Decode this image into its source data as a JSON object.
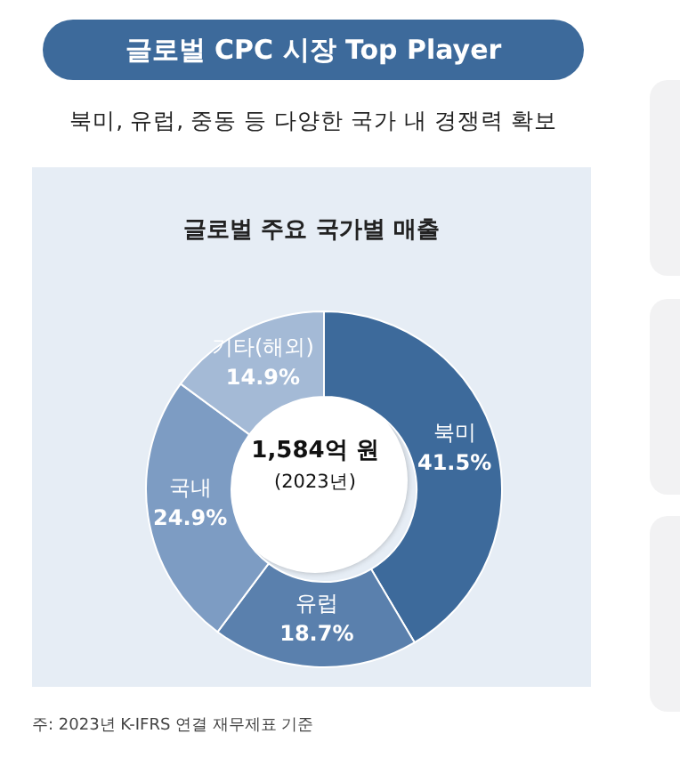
{
  "chart_data": {
    "type": "donut",
    "title": "글로벌 CPC 시장 Top Player",
    "subtitle": "북미, 유럽, 중동 등 다양한 국가 내 경쟁력 확보",
    "categories": [
      "북미",
      "유럽",
      "국내",
      "기타(해외)"
    ],
    "values": [
      41.5,
      18.7,
      24.9,
      14.9
    ],
    "colors": [
      "#3d6a9b",
      "#5a80ad",
      "#7d9cc3",
      "#a4bad6"
    ],
    "value_labels": [
      "41.5%",
      "18.7%",
      "24.9%",
      "14.9%"
    ],
    "legend": false,
    "annotations": [
      "글로벌 주요 국가별 매출",
      "1,584억 원",
      "(2023년)",
      "주: 2023년 K-IFRS 연결 재무제표 기준"
    ]
  }
}
